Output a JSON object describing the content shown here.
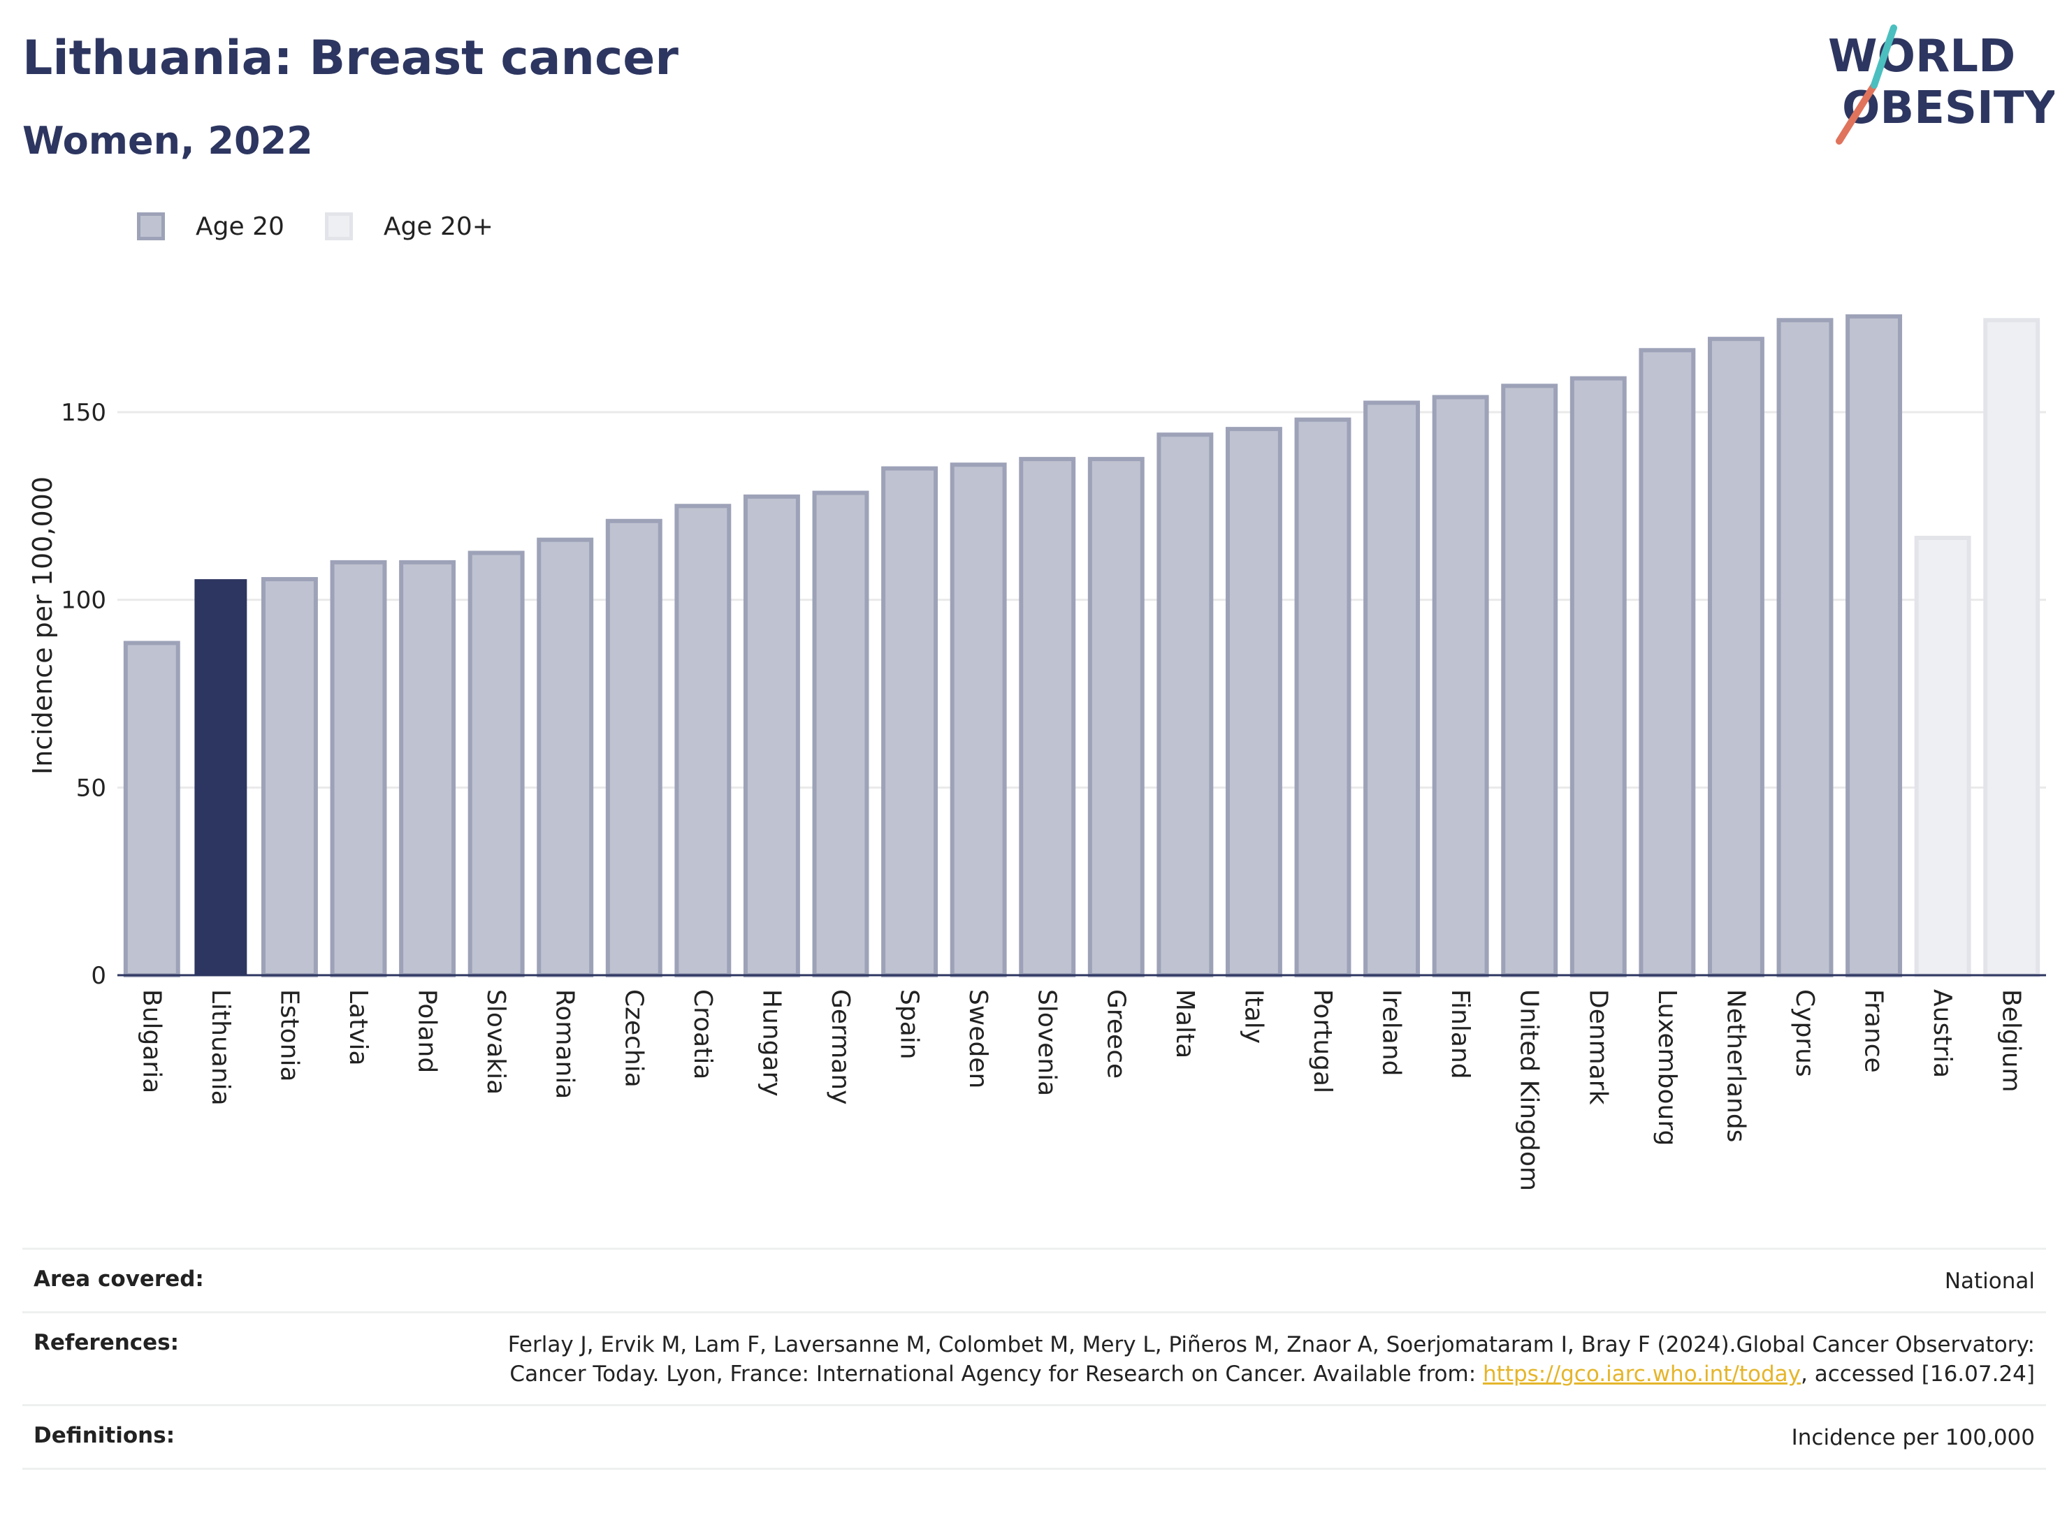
{
  "header": {
    "title": "Lithuania: Breast cancer",
    "subtitle": "Women, 2022"
  },
  "logo": {
    "line1": "WORLD",
    "line2": "OBESITY",
    "slash_colors": [
      "#e0735c",
      "#4bbfbf"
    ]
  },
  "colors": {
    "highlight": "#2d3660",
    "age20_fill": "#bfc2d0",
    "age20_stroke": "#9da2b8",
    "age20plus_fill": "#eeeff3",
    "age20plus_stroke": "#e3e4ea",
    "grid": "#eaeaea"
  },
  "legend": [
    {
      "label": "Age 20",
      "series": "age20"
    },
    {
      "label": "Age 20+",
      "series": "age20plus"
    }
  ],
  "chart_data": {
    "type": "bar",
    "ylabel": "Incidence per 100,000",
    "xlabel": "",
    "ylim": [
      0,
      190
    ],
    "yticks": [
      0,
      50,
      100,
      150
    ],
    "grid": true,
    "legend_position": "top-left",
    "highlight_category": "Lithuania",
    "categories": [
      "Bulgaria",
      "Lithuania",
      "Estonia",
      "Latvia",
      "Poland",
      "Slovakia",
      "Romania",
      "Czechia",
      "Croatia",
      "Hungary",
      "Germany",
      "Spain",
      "Sweden",
      "Slovenia",
      "Greece",
      "Malta",
      "Italy",
      "Portugal",
      "Ireland",
      "Finland",
      "United Kingdom",
      "Denmark",
      "Luxembourg",
      "Netherlands",
      "Cyprus",
      "France",
      "Austria",
      "Belgium"
    ],
    "values": [
      88.5,
      105.5,
      105.5,
      110,
      110,
      112.5,
      116,
      121,
      125,
      127.5,
      128.5,
      135,
      136,
      137.5,
      137.5,
      144,
      145.5,
      148,
      152.5,
      154,
      157,
      159,
      166.5,
      169.5,
      174.5,
      175.5,
      116.5,
      174.5
    ],
    "series_membership": [
      "age20",
      "age20",
      "age20",
      "age20",
      "age20",
      "age20",
      "age20",
      "age20",
      "age20",
      "age20",
      "age20",
      "age20",
      "age20",
      "age20",
      "age20",
      "age20",
      "age20",
      "age20",
      "age20",
      "age20",
      "age20",
      "age20",
      "age20",
      "age20",
      "age20",
      "age20",
      "age20plus",
      "age20plus"
    ]
  },
  "info": {
    "area": {
      "label": "Area covered:",
      "value": "National"
    },
    "references": {
      "label": "References:",
      "text1": "Ferlay J, Ervik M, Lam F, Laversanne M, Colombet M, Mery L, Piñeros M, Znaor A, Soerjomataram I, Bray F (2024).Global Cancer Observatory: Cancer Today. Lyon, France: International Agency for Research on Cancer. Available from: ",
      "link": "https://gco.iarc.who.int/today",
      "text2": ", accessed [16.07.24]"
    },
    "definitions": {
      "label": "Definitions:",
      "value": "Incidence per 100,000"
    }
  }
}
